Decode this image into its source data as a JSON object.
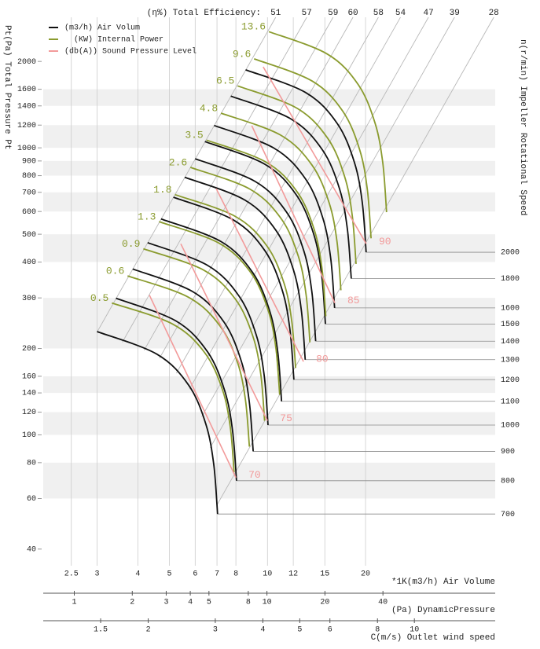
{
  "chart_data": {
    "type": "fan-curve",
    "efficiency_title": "(η%) Total Efficiency:",
    "ylabel": "Pt(Pa) Total Pressure Pt",
    "y2label": "n(r/min) Impeller Rotational Speed",
    "xlabel": "*1K(m3/h) Air Volume",
    "log": true,
    "grid": true,
    "xlim": [
      2.05,
      50
    ],
    "xticks": [
      2.5,
      3,
      4,
      5,
      6,
      7,
      8,
      10,
      12,
      15,
      20
    ],
    "ylim": [
      35,
      2850
    ],
    "yticks": [
      40,
      60,
      80,
      100,
      120,
      140,
      160,
      200,
      300,
      400,
      500,
      600,
      700,
      800,
      900,
      1000,
      1200,
      1400,
      1600,
      2000
    ],
    "base_curve": {
      "x": [
        3,
        4.58,
        5.73,
        6.47,
        6.84,
        7.03
      ],
      "y": [
        229,
        191,
        149,
        109,
        79,
        53
      ]
    },
    "series": [
      {
        "name": "(m3/h) Air Volum",
        "color": "#111111",
        "speeds": [
          700,
          800,
          900,
          1000,
          1100,
          1200,
          1300,
          1400,
          1500,
          1600,
          1800,
          2000
        ]
      },
      {
        "name": "(KW) Internal Power",
        "color": "#8a9b2e",
        "values": [
          0.5,
          0.6,
          0.9,
          1.3,
          1.8,
          2.6,
          3.5,
          4.8,
          6.5,
          9.6,
          13.6
        ],
        "x_start": [
          3.33,
          3.72,
          4.16,
          4.65,
          5.2,
          5.8,
          6.5,
          7.2,
          8.1,
          9.1,
          10.1
        ],
        "y_start": [
          288,
          358,
          445,
          553,
          687,
          855,
          1064,
          1321,
          1644,
          2042,
          2540
        ],
        "x_end": [
          7.9,
          8.8,
          9.8,
          10.9,
          12.2,
          13.5,
          15.1,
          16.8,
          18.7,
          20.8,
          23.2
        ],
        "y_end": [
          74,
          91,
          112,
          138,
          171,
          210,
          259,
          319,
          394,
          484,
          597
        ]
      },
      {
        "name": "(db(A)) Sound Pressure Level",
        "color": "#f29a9a",
        "values": [
          70,
          75,
          80,
          85,
          90
        ],
        "x_start": [
          4.34,
          5.42,
          6.96,
          8.95,
          9.7
        ],
        "y_start": [
          307,
          463,
          721,
          1194,
          1915
        ],
        "x_end": [
          8.0,
          10,
          12.9,
          16.1,
          20.1
        ],
        "y_end": [
          71,
          112,
          180,
          288,
          463
        ]
      }
    ],
    "efficiency": {
      "values": [
        51,
        57,
        59,
        60,
        58,
        54,
        47,
        39,
        28
      ],
      "x": [
        10.6,
        13.2,
        15.9,
        18.3,
        21.9,
        25.6,
        31.2,
        37.5,
        49.5
      ]
    },
    "secondary_axes": [
      {
        "label": "(Pa) DynamicPressure",
        "xlim": [
          0.69,
          153
        ],
        "xticks": [
          1,
          2,
          3,
          4,
          5,
          8,
          10,
          20,
          40
        ]
      },
      {
        "label": "C(m/s) Outlet wind speed",
        "xlim": [
          1.06,
          16.3
        ],
        "xticks": [
          1.5,
          2,
          3,
          4,
          5,
          6,
          8,
          10
        ]
      }
    ]
  }
}
